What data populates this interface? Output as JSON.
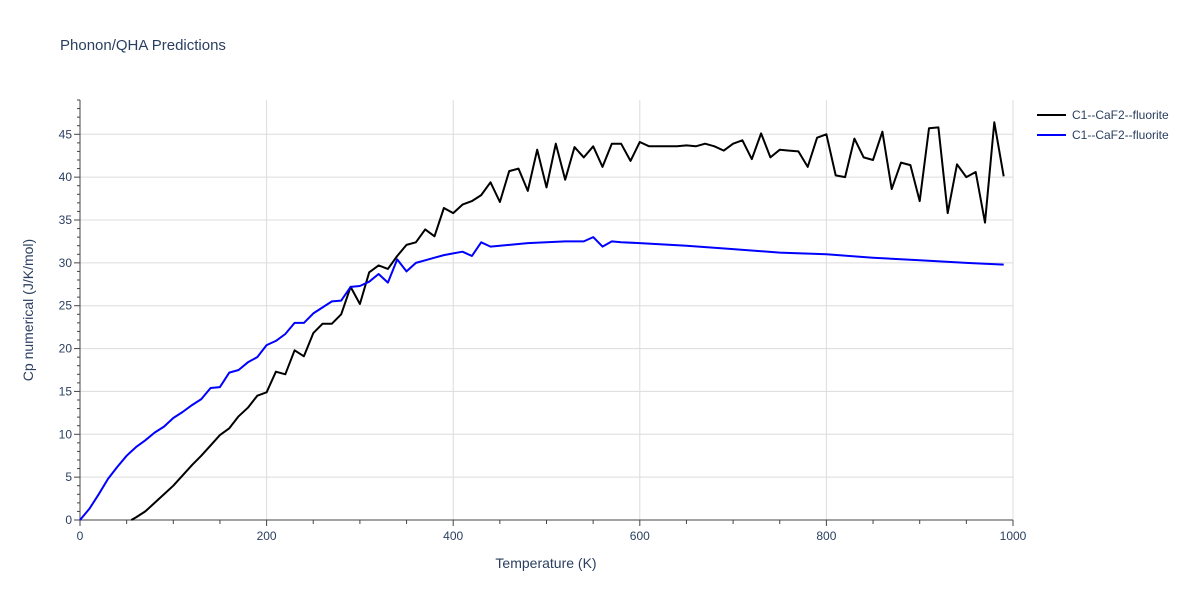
{
  "chart_data": {
    "type": "line",
    "title": "Phonon/QHA Predictions",
    "xlabel": "Temperature (K)",
    "ylabel": "Cp numerical (J/K/mol)",
    "xlim": [
      0,
      1000
    ],
    "ylim": [
      0,
      49
    ],
    "x_ticks": [
      0,
      200,
      400,
      600,
      800,
      1000
    ],
    "y_ticks": [
      0,
      5,
      10,
      15,
      20,
      25,
      30,
      35,
      40,
      45
    ],
    "grid": true,
    "legend_position": "top-right",
    "series": [
      {
        "name": "C1--CaF2--fluorite",
        "color": "#000000",
        "x": [
          55,
          60,
          70,
          80,
          90,
          100,
          110,
          120,
          130,
          140,
          150,
          160,
          170,
          180,
          190,
          200,
          210,
          220,
          230,
          240,
          250,
          260,
          270,
          280,
          290,
          300,
          310,
          320,
          330,
          340,
          350,
          360,
          370,
          380,
          390,
          400,
          410,
          420,
          430,
          440,
          450,
          460,
          470,
          480,
          490,
          500,
          510,
          520,
          530,
          540,
          550,
          560,
          570,
          580,
          590,
          600,
          610,
          620,
          630,
          640,
          650,
          660,
          670,
          680,
          690,
          700,
          710,
          720,
          730,
          740,
          750,
          760,
          770,
          780,
          790,
          800,
          810,
          820,
          830,
          840,
          850,
          860,
          870,
          880,
          890,
          900,
          910,
          920,
          930,
          940,
          950,
          960,
          970,
          980,
          990
        ],
        "y": [
          0,
          0.3,
          1.0,
          2.0,
          3.0,
          4.0,
          5.2,
          6.4,
          7.5,
          8.7,
          9.9,
          10.7,
          12.1,
          13.1,
          14.5,
          14.9,
          17.3,
          17.0,
          19.8,
          19.1,
          21.8,
          22.9,
          22.9,
          24.0,
          27.2,
          25.2,
          28.9,
          29.7,
          29.3,
          30.8,
          32.1,
          32.4,
          33.9,
          33.1,
          36.4,
          35.8,
          36.8,
          37.2,
          37.9,
          39.4,
          37.1,
          40.7,
          41.0,
          38.4,
          43.2,
          38.8,
          43.9,
          39.7,
          43.5,
          42.3,
          43.6,
          41.2,
          43.9,
          43.9,
          41.9,
          44.1,
          43.6,
          43.6,
          43.6,
          43.6,
          43.7,
          43.6,
          43.9,
          43.6,
          43.1,
          43.9,
          44.3,
          42.1,
          45.1,
          42.3,
          43.2,
          43.1,
          43.0,
          41.2,
          44.6,
          45.0,
          40.2,
          40.0,
          44.5,
          42.3,
          42.0,
          45.3,
          38.6,
          41.7,
          41.4,
          37.2,
          45.7,
          45.8,
          35.8,
          41.5,
          40.0,
          40.6,
          34.7,
          46.4,
          40.1
        ]
      },
      {
        "name": "C1--CaF2--fluorite",
        "color": "#0000ff",
        "x": [
          0,
          10,
          20,
          30,
          40,
          50,
          60,
          70,
          80,
          90,
          100,
          110,
          120,
          130,
          140,
          150,
          160,
          170,
          180,
          190,
          200,
          210,
          220,
          230,
          240,
          250,
          260,
          270,
          280,
          290,
          300,
          310,
          320,
          330,
          340,
          350,
          360,
          370,
          380,
          390,
          400,
          410,
          420,
          430,
          440,
          480,
          500,
          520,
          540,
          550,
          560,
          570,
          580,
          600,
          650,
          700,
          750,
          800,
          850,
          900,
          950,
          990
        ],
        "y": [
          0,
          1.3,
          3.0,
          4.8,
          6.2,
          7.5,
          8.5,
          9.3,
          10.2,
          10.9,
          11.9,
          12.6,
          13.4,
          14.1,
          15.4,
          15.5,
          17.2,
          17.5,
          18.4,
          19.0,
          20.4,
          20.9,
          21.7,
          23.0,
          23.0,
          24.1,
          24.8,
          25.5,
          25.6,
          27.2,
          27.3,
          27.8,
          28.7,
          27.7,
          30.4,
          29.0,
          30.0,
          30.3,
          30.6,
          30.9,
          31.1,
          31.3,
          30.8,
          32.4,
          31.9,
          32.3,
          32.4,
          32.5,
          32.5,
          33.0,
          31.9,
          32.5,
          32.4,
          32.3,
          32.0,
          31.6,
          31.2,
          31.0,
          30.6,
          30.3,
          30.0,
          29.8
        ]
      }
    ]
  }
}
